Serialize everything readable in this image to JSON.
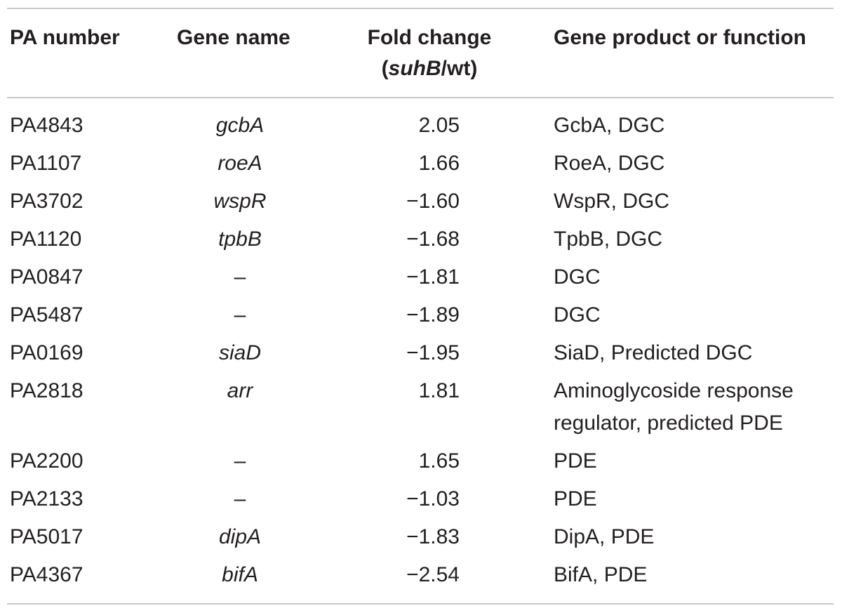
{
  "table": {
    "headers": {
      "pa_number": "PA number",
      "gene_name": "Gene name",
      "fold_change_line1": "Fold change",
      "fold_change_italic": "suhB",
      "fold_change_suffix": "/wt",
      "function": "Gene product or function"
    },
    "rows": [
      {
        "pa": "PA4843",
        "gene": "gcbA",
        "fold": "2.05",
        "function": "GcbA, DGC"
      },
      {
        "pa": "PA1107",
        "gene": "roeA",
        "fold": "1.66",
        "function": "RoeA, DGC"
      },
      {
        "pa": "PA3702",
        "gene": "wspR",
        "fold": "−1.60",
        "function": "WspR, DGC"
      },
      {
        "pa": "PA1120",
        "gene": "tpbB",
        "fold": "−1.68",
        "function": "TpbB, DGC"
      },
      {
        "pa": "PA0847",
        "gene": "–",
        "fold": "−1.81",
        "function": "DGC"
      },
      {
        "pa": "PA5487",
        "gene": "–",
        "fold": "−1.89",
        "function": "DGC"
      },
      {
        "pa": "PA0169",
        "gene": "siaD",
        "fold": "−1.95",
        "function": "SiaD, Predicted DGC"
      },
      {
        "pa": "PA2818",
        "gene": "arr",
        "fold": "1.81",
        "function": "Aminoglycoside response regulator, predicted PDE"
      },
      {
        "pa": "PA2200",
        "gene": "–",
        "fold": "1.65",
        "function": "PDE"
      },
      {
        "pa": "PA2133",
        "gene": "–",
        "fold": "−1.03",
        "function": "PDE"
      },
      {
        "pa": "PA5017",
        "gene": "dipA",
        "fold": "−1.83",
        "function": "DipA, PDE"
      },
      {
        "pa": "PA4367",
        "gene": "bifA",
        "fold": "−2.54",
        "function": "BifA, PDE"
      }
    ]
  }
}
